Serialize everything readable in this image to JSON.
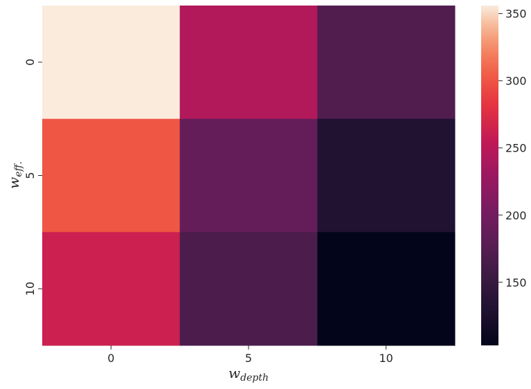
{
  "chart_data": {
    "type": "heatmap",
    "x_categories": [
      "0",
      "5",
      "10"
    ],
    "y_categories": [
      "0",
      "5",
      "10"
    ],
    "values": [
      [
        356,
        245,
        172
      ],
      [
        302,
        188,
        130
      ],
      [
        262,
        168,
        103
      ]
    ],
    "xlabel": {
      "base": "w",
      "sub": "depth"
    },
    "ylabel": {
      "base": "w",
      "sub": "eff."
    },
    "colorbar": {
      "min": 103,
      "max": 356,
      "ticks": [
        150,
        200,
        250,
        300,
        350
      ],
      "colormap": "rocket"
    },
    "grid": false
  }
}
